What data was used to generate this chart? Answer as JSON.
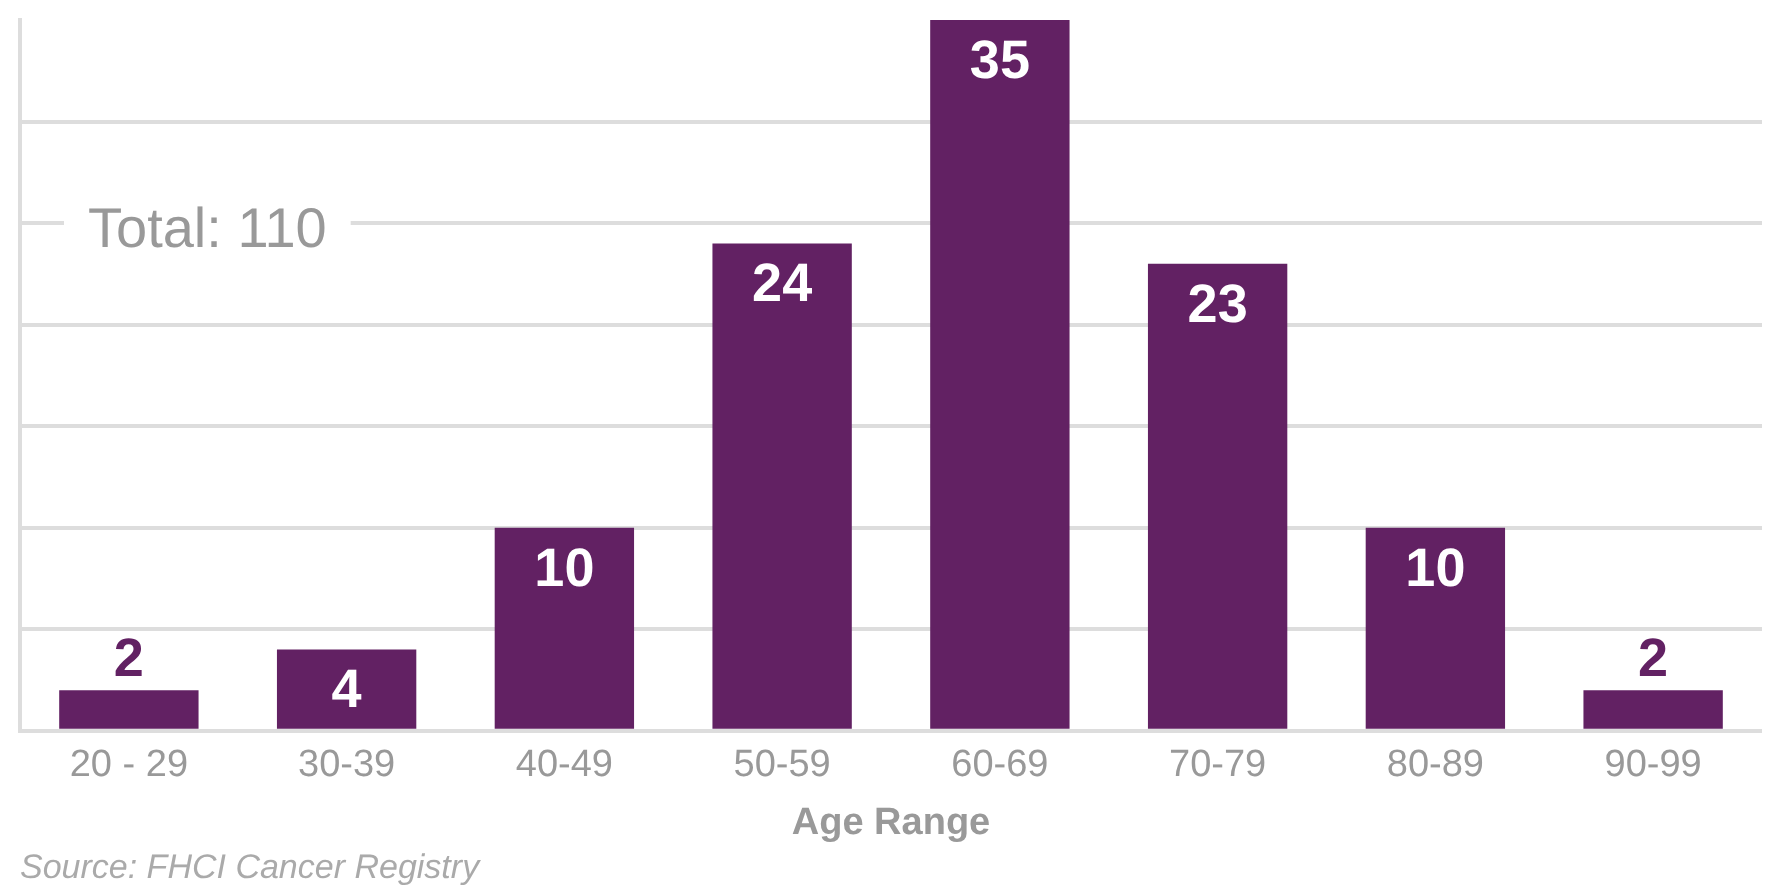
{
  "chart_data": {
    "type": "bar",
    "xlabel": "Age Range",
    "categories": [
      "20 - 29",
      "30-39",
      "40-49",
      "50-59",
      "60-69",
      "70-79",
      "80-89",
      "90-99"
    ],
    "values": [
      2,
      4,
      10,
      24,
      35,
      23,
      10,
      2
    ],
    "color": "#622163",
    "ylim": [
      0,
      35
    ],
    "yticks": [
      {
        "value": 0,
        "label": null
      },
      {
        "value": 5,
        "label": null
      },
      {
        "value": 10,
        "label": null
      },
      {
        "value": 15,
        "label": null
      },
      {
        "value": 20,
        "label": null
      },
      {
        "value": 25,
        "label": null
      },
      {
        "value": 30,
        "label": null
      }
    ],
    "grid": "y",
    "tick_labels": "x",
    "data_labels": true,
    "legend": false,
    "annotations": [
      "Total: 110",
      "Source: FHCI Cancer Registry"
    ]
  }
}
